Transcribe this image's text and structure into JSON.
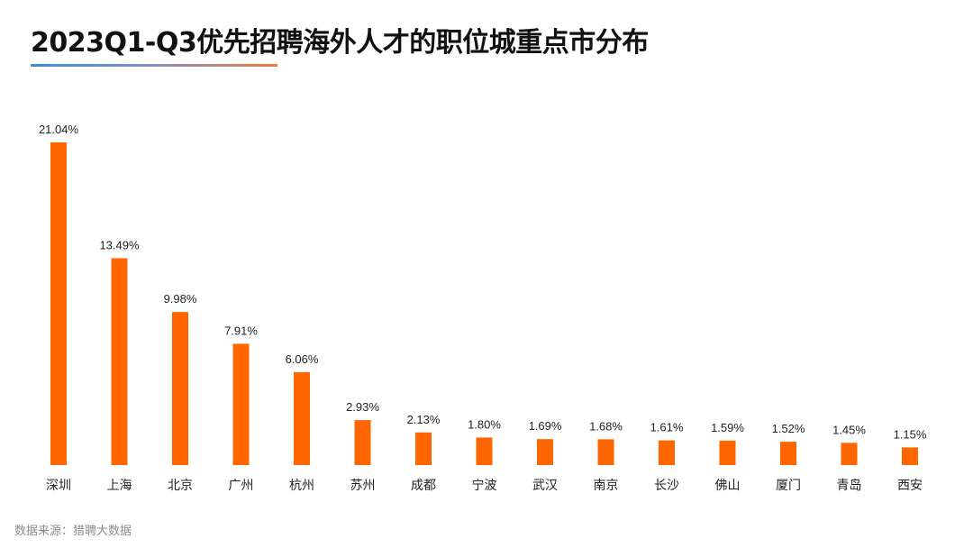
{
  "header": {
    "title": "2023Q1-Q3优先招聘海外人才的职位城重点市分布"
  },
  "footer": {
    "source": "数据来源：猎聘大数据"
  },
  "colors": {
    "bar": "#ff6600",
    "underline_start": "#3a8dde",
    "underline_end": "#f07a3a"
  },
  "chart_data": {
    "type": "bar",
    "title": "2023Q1-Q3优先招聘海外人才的职位城重点市分布",
    "xlabel": "",
    "ylabel": "",
    "categories": [
      "深圳",
      "上海",
      "北京",
      "广州",
      "杭州",
      "苏州",
      "成都",
      "宁波",
      "武汉",
      "南京",
      "长沙",
      "佛山",
      "厦门",
      "青岛",
      "西安"
    ],
    "values": [
      21.04,
      13.49,
      9.98,
      7.91,
      6.06,
      2.93,
      2.13,
      1.8,
      1.69,
      1.68,
      1.61,
      1.59,
      1.52,
      1.45,
      1.15
    ],
    "value_labels": [
      "21.04%",
      "13.49%",
      "9.98%",
      "7.91%",
      "6.06%",
      "2.93%",
      "2.13%",
      "1.80%",
      "1.69%",
      "1.68%",
      "1.61%",
      "1.59%",
      "1.52%",
      "1.45%",
      "1.15%"
    ],
    "grid": false,
    "legend": "none"
  }
}
